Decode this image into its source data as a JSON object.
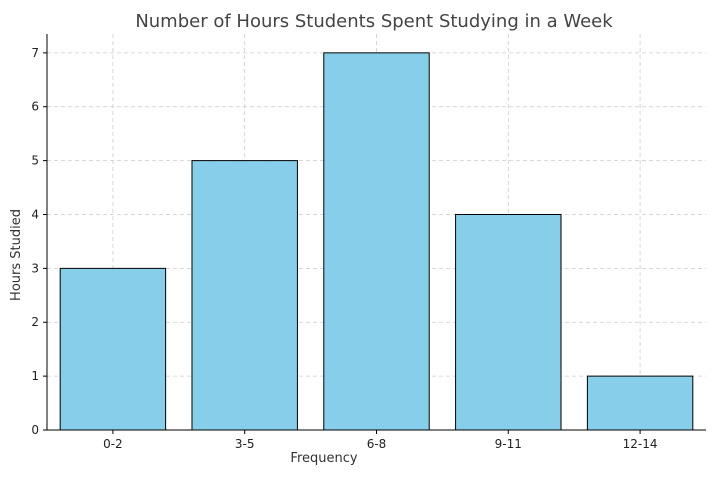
{
  "chart_data": {
    "type": "bar",
    "title": "Number of Hours Students Spent Studying in a Week",
    "xlabel": "Frequency",
    "ylabel": "Hours Studied",
    "categories": [
      "0-2",
      "3-5",
      "6-8",
      "9-11",
      "12-14"
    ],
    "values": [
      3,
      5,
      7,
      4,
      1
    ],
    "ylim": [
      0,
      7.35
    ],
    "yticks": [
      0,
      1,
      2,
      3,
      4,
      5,
      6,
      7
    ],
    "grid": true,
    "legend": "none",
    "colors": {
      "bar_fill": "#87CEEB",
      "bar_edge": "#000000",
      "grid": "#cccccc"
    }
  }
}
